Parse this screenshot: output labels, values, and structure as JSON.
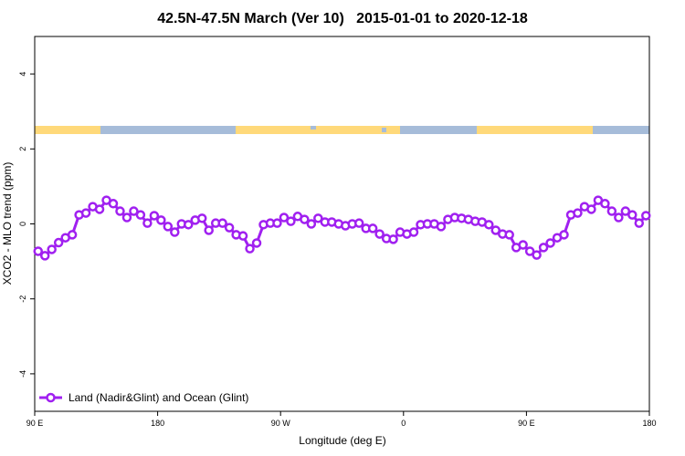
{
  "chart_data": {
    "type": "line",
    "title": "42.5N-47.5N March (Ver 10)   2015-01-01 to 2020-12-18",
    "x_label": "Longitude (deg E)",
    "y_label": "XCO2 - MLO trend (ppm)",
    "x": [
      92.5,
      97.5,
      102.5,
      107.5,
      112.5,
      117.5,
      122.5,
      127.5,
      132.5,
      137.5,
      142.5,
      147.5,
      152.5,
      157.5,
      162.5,
      167.5,
      172.5,
      177.5,
      182.5,
      187.5,
      192.5,
      197.5,
      202.5,
      207.5,
      212.5,
      217.5,
      222.5,
      227.5,
      232.5,
      237.5,
      242.5,
      247.5,
      252.5,
      257.5,
      262.5,
      267.5,
      272.5,
      277.5,
      282.5,
      287.5,
      292.5,
      297.5,
      302.5,
      307.5,
      312.5,
      317.5,
      322.5,
      327.5,
      332.5,
      337.5,
      342.5,
      347.5,
      352.5,
      357.5,
      362.5,
      367.5,
      372.5,
      377.5,
      382.5,
      387.5,
      392.5,
      397.5,
      402.5,
      407.5,
      412.5,
      417.5,
      422.5,
      427.5,
      432.5,
      437.5,
      442.5,
      447.5,
      452.5,
      457.5,
      462.5,
      467.5,
      472.5,
      477.5,
      482.5,
      487.5,
      492.5,
      497.5,
      502.5,
      507.5,
      512.5,
      517.5,
      522.5,
      527.5,
      532.5,
      537.5
    ],
    "series": [
      {
        "name": "Land (Nadir&Glint) and Ocean (Glint)",
        "color": "#a020f0",
        "values": [
          -0.73,
          -0.85,
          -0.68,
          -0.5,
          -0.37,
          -0.29,
          0.24,
          0.29,
          0.46,
          0.39,
          0.63,
          0.54,
          0.34,
          0.17,
          0.34,
          0.24,
          0.02,
          0.22,
          0.1,
          -0.07,
          -0.22,
          0,
          -0.02,
          0.1,
          0.15,
          -0.17,
          0.02,
          0.02,
          -0.1,
          -0.29,
          -0.32,
          -0.66,
          -0.51,
          -0.02,
          0.02,
          0.02,
          0.17,
          0.07,
          0.2,
          0.12,
          0,
          0.15,
          0.05,
          0.05,
          0,
          -0.05,
          0,
          0.02,
          -0.12,
          -0.12,
          -0.27,
          -0.39,
          -0.41,
          -0.22,
          -0.27,
          -0.22,
          -0.02,
          0,
          0,
          -0.07,
          0.12,
          0.17,
          0.15,
          0.12,
          0.07,
          0.05,
          -0.02,
          -0.17,
          -0.27,
          -0.29,
          -0.63,
          -0.56,
          -0.73,
          -0.83,
          -0.63,
          -0.51,
          -0.37,
          -0.29,
          0.24,
          0.29,
          0.46,
          0.39,
          0.63,
          0.54,
          0.34,
          0.17,
          0.34,
          0.24,
          0.02,
          0.22
        ]
      }
    ],
    "xlim": [
      90,
      540
    ],
    "xticks": [
      {
        "value": 90,
        "label": "90 E"
      },
      180,
      {
        "value": 270,
        "label": "90 W"
      },
      {
        "value": 360,
        "label": "0"
      },
      {
        "value": 450,
        "label": "90 E"
      },
      {
        "value": 540,
        "label": "180"
      }
    ],
    "ylim": [
      -5,
      5
    ],
    "yticks": [
      -4,
      -2,
      0,
      2,
      4
    ],
    "legend": "bottom-left"
  }
}
